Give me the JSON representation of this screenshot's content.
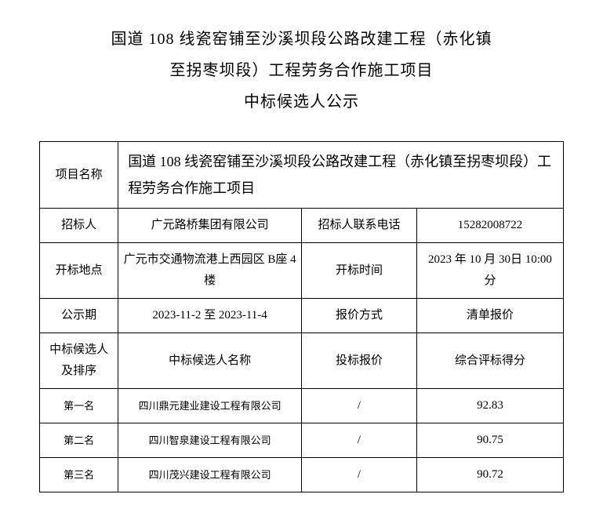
{
  "title": {
    "line1": "国道 108 线瓷窑铺至沙溪坝段公路改建工程（赤化镇",
    "line2": "至拐枣坝段）工程劳务合作施工项目",
    "line3": "中标候选人公示"
  },
  "labels": {
    "project_name": "项目名称",
    "tenderee": "招标人",
    "tenderee_phone": "招标人联系电话",
    "bid_location": "开标地点",
    "bid_time": "开标时间",
    "publicity_period": "公示期",
    "quote_method": "报价方式",
    "candidates_and_rank": "中标候选人及排序",
    "candidate_name": "中标候选人名称",
    "bid_price": "投标报价",
    "score": "综合评标得分",
    "rank1": "第一名",
    "rank2": "第二名",
    "rank3": "第三名"
  },
  "values": {
    "project_name": "国道 108 线瓷窑铺至沙溪坝段公路改建工程（赤化镇至拐枣坝段）工程劳务合作施工项目",
    "tenderee": "广元路桥集团有限公司",
    "tenderee_phone": "15282008722",
    "bid_location": "广元市交通物流港上西园区 B座 4 楼",
    "bid_time": "2023 年 10 月 30日 10:00 分",
    "publicity_period": "2023-11-2 至 2023-11-4",
    "quote_method": "清单报价"
  },
  "candidates": [
    {
      "name": "四川鼎元建业建设工程有限公司",
      "price": "/",
      "score": "92.83"
    },
    {
      "name": "四川智泉建设工程有限公司",
      "price": "/",
      "score": "90.75"
    },
    {
      "name": "四川茂兴建设工程有限公司",
      "price": "/",
      "score": "90.72"
    }
  ],
  "style": {
    "border_color": "#000000",
    "background_color": "#ffffff",
    "text_color": "#000000",
    "title_fontsize_pt": 15,
    "body_fontsize_pt": 11,
    "small_fontsize_pt": 10,
    "font_family": "SimSun"
  }
}
